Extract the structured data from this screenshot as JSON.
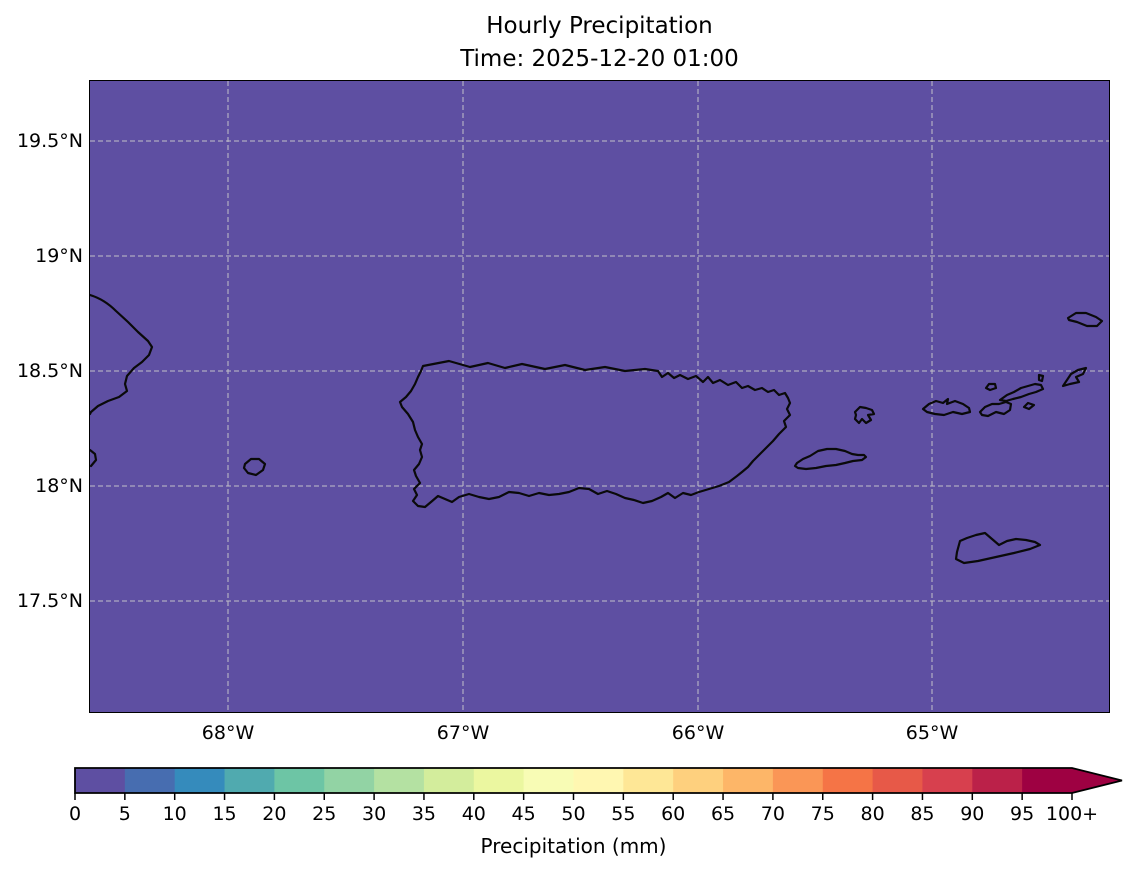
{
  "figure": {
    "title_line1": "Hourly Precipitation",
    "title_line2": "Time: 2025-12-20 01:00"
  },
  "axes": {
    "y_tick_labels": [
      "19.5°N",
      "19°N",
      "18.5°N",
      "18°N",
      "17.5°N"
    ],
    "x_tick_labels": [
      "68°W",
      "67°W",
      "66°W",
      "65°W"
    ]
  },
  "colorbar": {
    "label": "Precipitation (mm)",
    "tick_labels": [
      "0",
      "5",
      "10",
      "15",
      "20",
      "25",
      "30",
      "35",
      "40",
      "45",
      "50",
      "55",
      "60",
      "65",
      "70",
      "75",
      "80",
      "85",
      "90",
      "95",
      "100+"
    ],
    "bin_colors": [
      "#5e4fa2",
      "#476db0",
      "#358bbc",
      "#50aaaf",
      "#6dc5a5",
      "#92d3a4",
      "#b4e1a2",
      "#d3ed9c",
      "#ebf7a0",
      "#f8fcb5",
      "#fff7b1",
      "#fee796",
      "#fed07e",
      "#fdb668",
      "#fa9656",
      "#f57446",
      "#e75948",
      "#d7404e",
      "#bb2149",
      "#9e0142"
    ],
    "over_arrow_color": "#9e0142"
  },
  "map": {
    "zero_value_fill_color": "#5e4fa2",
    "coastline_color": "#0a0a0a",
    "gridline_color": "#cdcdcd",
    "coastline_features": [
      "hispaniola-east-coast",
      "mona-island",
      "puerto-rico",
      "vieques",
      "culebra",
      "st-thomas",
      "st-john",
      "tortola",
      "jost-van-dyke",
      "virgin-gorda",
      "anegada",
      "st-croix"
    ]
  },
  "chart_data": {
    "type": "heatmap",
    "title": "Hourly Precipitation",
    "subtitle": "Time: 2025-12-20 01:00",
    "colorbar_label": "Precipitation (mm)",
    "colorbar_ticks": [
      0,
      5,
      10,
      15,
      20,
      25,
      30,
      35,
      40,
      45,
      50,
      55,
      60,
      65,
      70,
      75,
      80,
      85,
      90,
      95,
      100
    ],
    "colorbar_last_tick_label": "100+",
    "value_range_mm": [
      0,
      100
    ],
    "bin_width_mm": 5,
    "extend": "max",
    "x_axis": {
      "tick_labels": [
        "68°W",
        "67°W",
        "66°W",
        "65°W"
      ],
      "approx_extent_deg_w": [
        68.6,
        64.2
      ]
    },
    "y_axis": {
      "tick_labels": [
        "19.5°N",
        "19°N",
        "18.5°N",
        "18°N",
        "17.5°N"
      ],
      "approx_extent_deg_n": [
        17.0,
        19.7
      ]
    },
    "grid": true,
    "field_values": "uniform 0 mm precipitation over whole domain (every cell in 0–5 mm bin)"
  }
}
